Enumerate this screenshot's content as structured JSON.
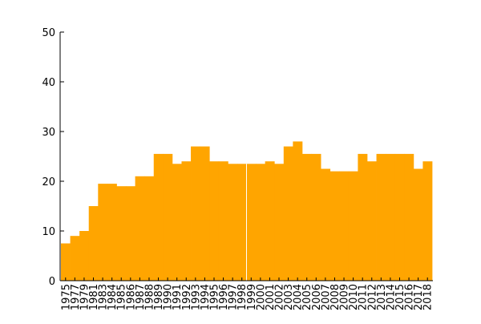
{
  "chart_data": {
    "type": "bar",
    "title": "",
    "xlabel": "year",
    "ylabel": "",
    "ylim": [
      0,
      50
    ],
    "yticks": [
      0,
      10,
      20,
      30,
      40,
      50
    ],
    "grid": false,
    "legend": "none",
    "bar_color": "#FFA500",
    "categories": [
      "1975",
      "1977",
      "1979",
      "1981",
      "1983",
      "1984",
      "1985",
      "1986",
      "1987",
      "1988",
      "1989",
      "1990",
      "1991",
      "1992",
      "1993",
      "1994",
      "1995",
      "1996",
      "1997",
      "1998",
      "1999",
      "2000",
      "2001",
      "2002",
      "2003",
      "2004",
      "2005",
      "2006",
      "2007",
      "2008",
      "2009",
      "2010",
      "2011",
      "2012",
      "2013",
      "2014",
      "2015",
      "2016",
      "2017",
      "2018"
    ],
    "values": [
      7.5,
      9,
      10,
      15,
      19.5,
      19.5,
      19,
      19,
      21,
      21,
      25.5,
      25.5,
      23.5,
      24,
      27,
      27,
      24,
      24,
      23.5,
      23.5,
      23.5,
      23.5,
      24,
      23.5,
      27,
      28,
      25.5,
      25.5,
      22.5,
      22,
      22,
      22,
      25.5,
      24,
      25.5,
      25.5,
      25.5,
      25.5,
      22.5,
      24
    ]
  }
}
